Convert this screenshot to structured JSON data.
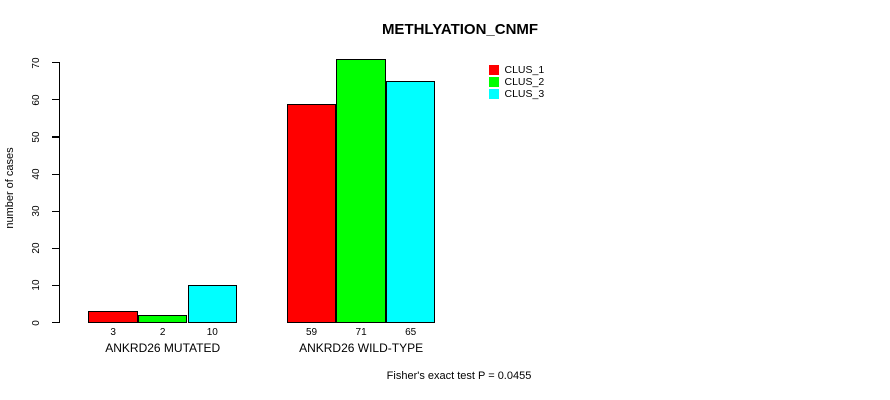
{
  "page": {
    "background": "#ffffff"
  },
  "chart_data": {
    "type": "bar",
    "title": "METHLYATION_CNMF",
    "ylabel": "number of cases",
    "xlabel": "",
    "categories": [
      "ANKRD26 MUTATED",
      "ANKRD26 WILD-TYPE"
    ],
    "series": [
      {
        "name": "CLUS_1",
        "color": "#ff0000",
        "values": [
          3,
          59
        ]
      },
      {
        "name": "CLUS_2",
        "color": "#00ff00",
        "values": [
          2,
          71
        ]
      },
      {
        "name": "CLUS_3",
        "color": "#00ffff",
        "values": [
          10,
          65
        ]
      }
    ],
    "value_labels": [
      [
        3,
        2,
        10
      ],
      [
        59,
        71,
        65
      ]
    ],
    "ylim": [
      0,
      70
    ],
    "yticks": [
      0,
      10,
      20,
      30,
      40,
      50,
      60,
      70
    ],
    "grid": false,
    "bar_edge_color": "#000000",
    "legend": {
      "position": "top-right",
      "entries": [
        "CLUS_1",
        "CLUS_2",
        "CLUS_3"
      ]
    },
    "annotation": "Fisher's exact test P = 0.0455"
  }
}
